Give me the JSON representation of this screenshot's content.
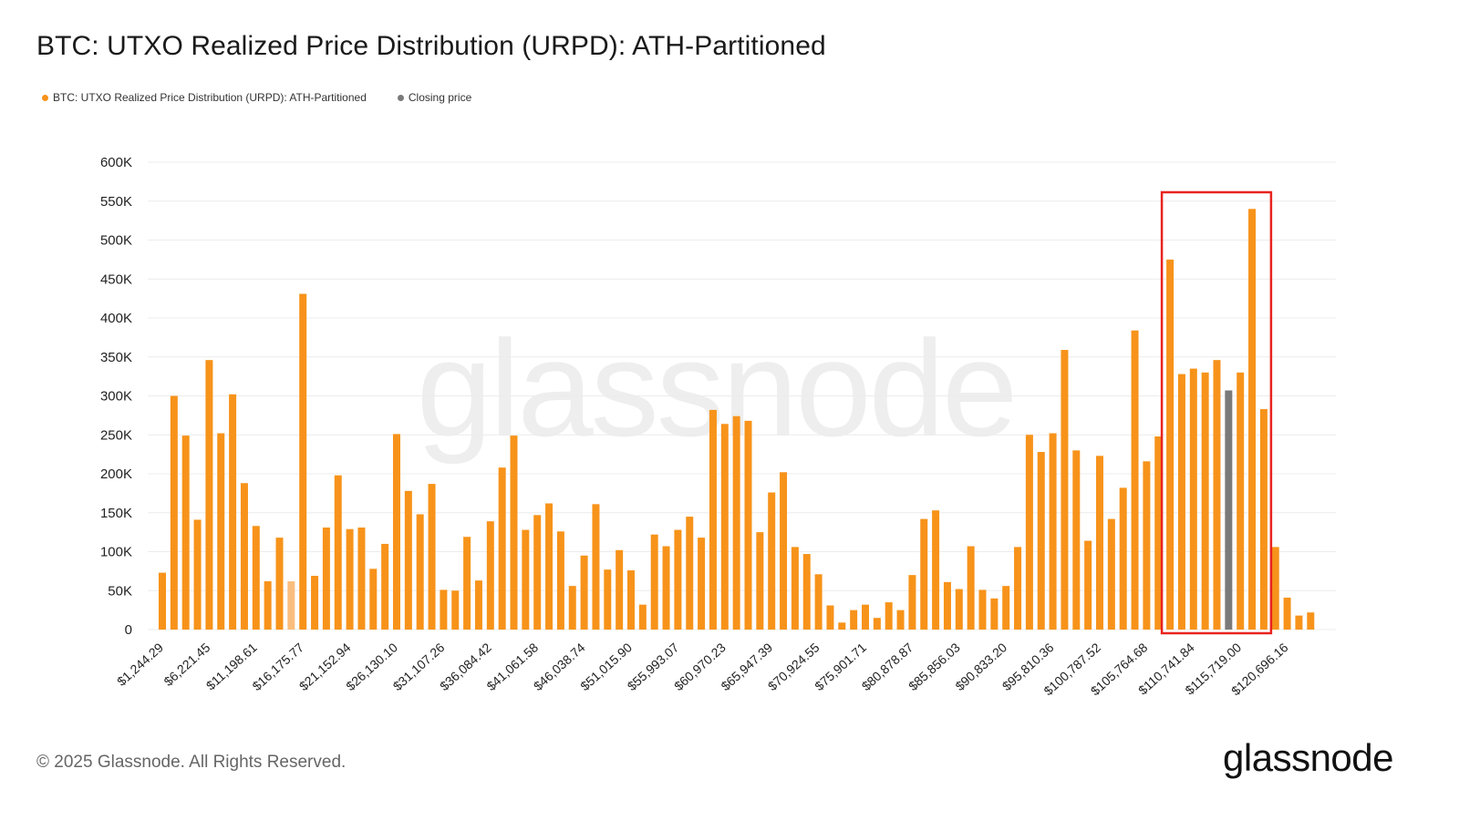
{
  "title": "BTC: UTXO Realized Price Distribution (URPD): ATH-Partitioned",
  "legend": [
    {
      "label": "BTC: UTXO Realized Price Distribution (URPD): ATH-Partitioned",
      "color": "#F7931A"
    },
    {
      "label": "Closing price",
      "color": "#7a7a7a"
    }
  ],
  "footer": "© 2025 Glassnode. All Rights Reserved.",
  "logo": "glassnode",
  "watermark": "glassnode",
  "chart_data": {
    "type": "bar",
    "ylim": [
      0,
      600000
    ],
    "y_ticks": [
      {
        "value": 0,
        "label": "0"
      },
      {
        "value": 50000,
        "label": "50K"
      },
      {
        "value": 100000,
        "label": "100K"
      },
      {
        "value": 150000,
        "label": "150K"
      },
      {
        "value": 200000,
        "label": "200K"
      },
      {
        "value": 250000,
        "label": "250K"
      },
      {
        "value": 300000,
        "label": "300K"
      },
      {
        "value": 350000,
        "label": "350K"
      },
      {
        "value": 400000,
        "label": "400K"
      },
      {
        "value": 450000,
        "label": "450K"
      },
      {
        "value": 500000,
        "label": "500K"
      },
      {
        "value": 550000,
        "label": "550K"
      },
      {
        "value": 600000,
        "label": "600K"
      }
    ],
    "x_tick_labels": [
      {
        "index": 0,
        "label": "$1,244.29"
      },
      {
        "index": 4,
        "label": "$6,221.45"
      },
      {
        "index": 8,
        "label": "$11,198.61"
      },
      {
        "index": 12,
        "label": "$16,175.77"
      },
      {
        "index": 16,
        "label": "$21,152.94"
      },
      {
        "index": 20,
        "label": "$26,130.10"
      },
      {
        "index": 24,
        "label": "$31,107.26"
      },
      {
        "index": 28,
        "label": "$36,084.42"
      },
      {
        "index": 32,
        "label": "$41,061.58"
      },
      {
        "index": 36,
        "label": "$46,038.74"
      },
      {
        "index": 40,
        "label": "$51,015.90"
      },
      {
        "index": 44,
        "label": "$55,993.07"
      },
      {
        "index": 48,
        "label": "$60,970.23"
      },
      {
        "index": 52,
        "label": "$65,947.39"
      },
      {
        "index": 56,
        "label": "$70,924.55"
      },
      {
        "index": 60,
        "label": "$75,901.71"
      },
      {
        "index": 64,
        "label": "$80,878.87"
      },
      {
        "index": 68,
        "label": "$85,856.03"
      },
      {
        "index": 72,
        "label": "$90,833.20"
      },
      {
        "index": 76,
        "label": "$95,810.36"
      },
      {
        "index": 80,
        "label": "$100,787.52"
      },
      {
        "index": 84,
        "label": "$105,764.68"
      },
      {
        "index": 88,
        "label": "$110,741.84"
      },
      {
        "index": 92,
        "label": "$115,719.00"
      },
      {
        "index": 96,
        "label": "$120,696.16"
      }
    ],
    "values": [
      73000,
      300000,
      249000,
      141000,
      346000,
      252000,
      302000,
      188000,
      133000,
      62000,
      118000,
      62000,
      431000,
      69000,
      131000,
      198000,
      129000,
      131000,
      78000,
      110000,
      251000,
      178000,
      148000,
      187000,
      51000,
      50000,
      119000,
      63000,
      139000,
      208000,
      249000,
      128000,
      147000,
      162000,
      126000,
      56000,
      95000,
      161000,
      77000,
      102000,
      76000,
      32000,
      122000,
      107000,
      128000,
      145000,
      118000,
      282000,
      264000,
      274000,
      268000,
      125000,
      176000,
      202000,
      106000,
      97000,
      71000,
      31000,
      9000,
      25000,
      32000,
      15000,
      35000,
      25000,
      70000,
      142000,
      153000,
      61000,
      52000,
      107000,
      51000,
      40000,
      56000,
      106000,
      250000,
      228000,
      252000,
      359000,
      230000,
      114000,
      223000,
      142000,
      182000,
      384000,
      216000,
      248000,
      475000,
      328000,
      335000,
      330000,
      346000,
      307000,
      330000,
      540000,
      283000,
      106000,
      41000,
      18000,
      22000
    ],
    "highlight_indices": [
      11
    ],
    "closing_price_index": 91,
    "annotation_box_indices": [
      86,
      94
    ],
    "colors": {
      "bar": "#F7931A",
      "bar_faded": "#F9BE7E",
      "closing": "#7a7a7a",
      "annotation": "#E8231E",
      "grid": "#ececec"
    }
  }
}
